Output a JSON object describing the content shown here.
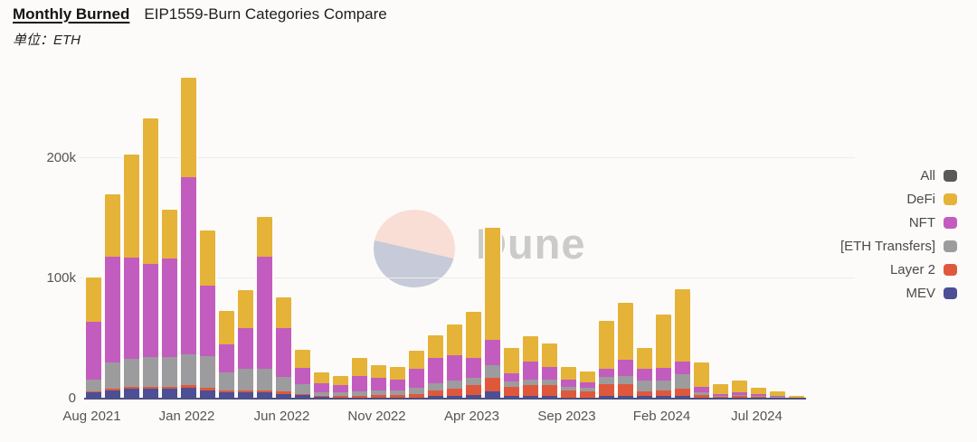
{
  "header": {
    "title": "Monthly Burned",
    "subtitle": "EIP1559-Burn Categories Compare",
    "unit_label": "单位：ETH"
  },
  "watermark": {
    "text": "Dune",
    "circle_top_color": "#f8ded4",
    "circle_bottom_color": "#c7cad8",
    "text_color": "#cbcbcb"
  },
  "legend": {
    "items": [
      {
        "label": "All",
        "color": "#595959"
      },
      {
        "label": "DeFi",
        "color": "#e5b338"
      },
      {
        "label": "NFT",
        "color": "#c35cbf"
      },
      {
        "label": "[ETH Transfers]",
        "color": "#9c9c9e"
      },
      {
        "label": "Layer 2",
        "color": "#e0583c"
      },
      {
        "label": "MEV",
        "color": "#4c4e96"
      }
    ]
  },
  "chart_data": {
    "type": "bar",
    "stacked": true,
    "title": "Monthly Burned EIP1559-Burn Categories Compare",
    "unit": "ETH",
    "ylim": [
      0,
      273000
    ],
    "grid": "horizontal",
    "legend_position": "right",
    "stack_order_bottom_to_top": [
      "MEV",
      "Layer 2",
      "[ETH Transfers]",
      "NFT",
      "DeFi"
    ],
    "categories": [
      "Aug 2021",
      "Sep 2021",
      "Oct 2021",
      "Nov 2021",
      "Dec 2021",
      "Jan 2022",
      "Feb 2022",
      "Mar 2022",
      "Apr 2022",
      "May 2022",
      "Jun 2022",
      "Jul 2022",
      "Aug 2022",
      "Sep 2022",
      "Oct 2022",
      "Nov 2022",
      "Dec 2022",
      "Jan 2023",
      "Feb 2023",
      "Mar 2023",
      "Apr 2023",
      "May 2023",
      "Jun 2023",
      "Jul 2023",
      "Aug 2023",
      "Sep 2023",
      "Oct 2023",
      "Nov 2023",
      "Dec 2023",
      "Jan 2024",
      "Feb 2024",
      "Mar 2024",
      "Apr 2024",
      "May 2024",
      "Jun 2024",
      "Jul 2024",
      "Aug 2024",
      "Sep 2024"
    ],
    "x_tick_labels": [
      "Aug 2021",
      "Jan 2022",
      "Jun 2022",
      "Nov 2022",
      "Apr 2023",
      "Sep 2023",
      "Feb 2024",
      "Jul 2024"
    ],
    "x_tick_positions": [
      0,
      5,
      10,
      15,
      20,
      25,
      30,
      35
    ],
    "y_ticks": [
      {
        "label": "0",
        "value": 0
      },
      {
        "label": "100k",
        "value": 100000
      },
      {
        "label": "200k",
        "value": 200000
      }
    ],
    "series": [
      {
        "name": "MEV",
        "color": "#4c4e96",
        "values": [
          5000,
          7000,
          8000,
          8000,
          8000,
          9000,
          7000,
          5000,
          5000,
          5000,
          4000,
          3000,
          1500,
          1000,
          1000,
          1000,
          1000,
          1000,
          2000,
          2000,
          3000,
          6000,
          2000,
          2000,
          2000,
          1000,
          1000,
          2000,
          2000,
          2000,
          2000,
          2000,
          1000,
          500,
          500,
          300,
          300,
          100
        ]
      },
      {
        "name": "Layer 2",
        "color": "#e0583c",
        "values": [
          1000,
          1000,
          2000,
          2000,
          2000,
          2000,
          2000,
          2000,
          2000,
          2000,
          2000,
          1000,
          1000,
          1000,
          1000,
          2000,
          2000,
          3000,
          5000,
          6000,
          8000,
          11000,
          8000,
          9000,
          9000,
          6000,
          5000,
          10000,
          10000,
          4000,
          5000,
          6000,
          2000,
          1000,
          1500,
          1000,
          700,
          300
        ]
      },
      {
        "name": "[ETH Transfers]",
        "color": "#9c9c9e",
        "values": [
          10000,
          22000,
          23000,
          25000,
          25000,
          26000,
          26000,
          15000,
          18000,
          18000,
          12000,
          8000,
          3000,
          3000,
          4000,
          4000,
          4000,
          5000,
          6000,
          7000,
          6000,
          11000,
          4000,
          5000,
          5000,
          3000,
          3000,
          6000,
          7000,
          9000,
          8000,
          12000,
          2000,
          1000,
          1000,
          700,
          500,
          300
        ]
      },
      {
        "name": "NFT",
        "color": "#c35cbf",
        "values": [
          48000,
          88000,
          84000,
          77000,
          82000,
          147000,
          59000,
          23000,
          34000,
          93000,
          41000,
          14000,
          7000,
          6000,
          13000,
          10000,
          9000,
          16000,
          21000,
          21000,
          17000,
          21000,
          7000,
          15000,
          10000,
          6000,
          5000,
          7000,
          13000,
          10000,
          11000,
          11000,
          5000,
          1500,
          2000,
          1500,
          1000,
          300
        ]
      },
      {
        "name": "DeFi",
        "color": "#e5b338",
        "values": [
          37000,
          52000,
          86000,
          121000,
          40000,
          83000,
          46000,
          28000,
          31000,
          33000,
          25000,
          15000,
          9500,
          8000,
          15000,
          11000,
          10000,
          15000,
          19000,
          26000,
          38000,
          93000,
          21000,
          21000,
          20000,
          10000,
          9000,
          40000,
          48000,
          17000,
          44000,
          60000,
          20000,
          8000,
          10000,
          5500,
          3500,
          1000
        ]
      }
    ]
  }
}
